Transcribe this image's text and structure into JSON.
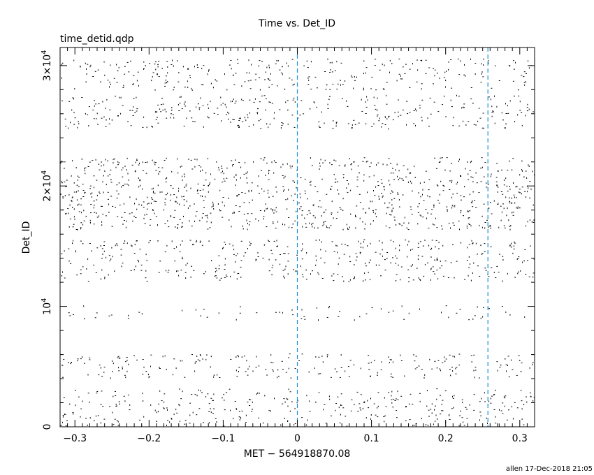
{
  "chart_data": {
    "type": "scatter",
    "title": "Time vs. Det_ID",
    "subtitle": "time_detid.qdp",
    "xlabel": "MET − 564918870.08",
    "ylabel": "Det_ID",
    "xlim": [
      -0.32,
      0.32
    ],
    "ylim": [
      0,
      31500
    ],
    "x_ticks": [
      -0.3,
      -0.2,
      -0.1,
      0,
      0.1,
      0.2,
      0.3
    ],
    "x_tick_labels": [
      "−0.3",
      "−0.2",
      "−0.1",
      "0",
      "0.1",
      "0.2",
      "0.3"
    ],
    "y_ticks": [
      {
        "value": 0,
        "base": "0",
        "exp": ""
      },
      {
        "value": 10000,
        "base": "10",
        "exp": "4"
      },
      {
        "value": 20000,
        "base": "2×10",
        "exp": "4"
      },
      {
        "value": 30000,
        "base": "3×10",
        "exp": "4"
      }
    ],
    "vertical_lines": [
      0,
      0.257
    ],
    "vertical_line_color": "#1a8fd6",
    "point_color": "#000000",
    "detector_bands": [
      {
        "y_min": 100,
        "y_max": 3200,
        "density": 0.7
      },
      {
        "y_min": 4100,
        "y_max": 6100,
        "density": 0.7
      },
      {
        "y_min": 8900,
        "y_max": 10100,
        "density": 0.35
      },
      {
        "y_min": 12100,
        "y_max": 15600,
        "density": 0.75
      },
      {
        "y_min": 16400,
        "y_max": 22400,
        "density": 1.0
      },
      {
        "y_min": 24800,
        "y_max": 27600,
        "density": 0.75
      },
      {
        "y_min": 28000,
        "y_max": 30600,
        "density": 0.7
      }
    ],
    "grid": false,
    "legend": "none"
  },
  "footer": {
    "stamp": "allen 17-Dec-2018 21:05"
  }
}
